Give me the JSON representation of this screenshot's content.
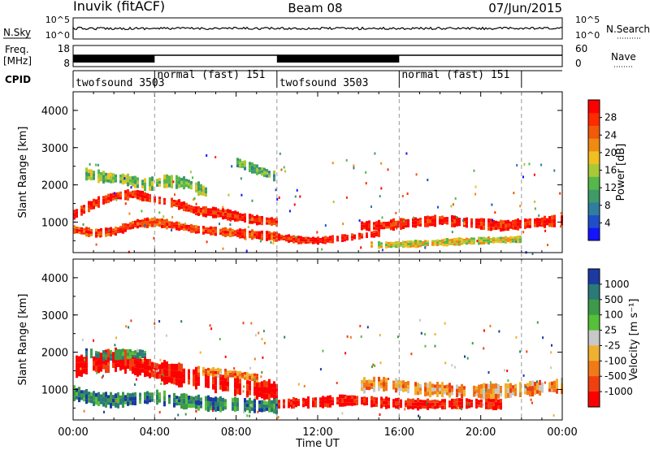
{
  "header": {
    "station": "Inuvik (fitACF)",
    "beam": "Beam 08",
    "date": "07/Jun/2015"
  },
  "top_panels": {
    "nsky": {
      "left_label": "N.Sky",
      "left_ticks": [
        "10^5",
        "10^0"
      ],
      "right_ticks": [
        "10^5",
        "10^0"
      ],
      "right_label": "N.Search"
    },
    "freq": {
      "left_label_1": "Freq.",
      "left_label_2": "[MHz]",
      "left_ticks": [
        "18",
        "8"
      ],
      "right_ticks": [
        "60",
        "0"
      ],
      "right_label": "Nave"
    },
    "cpid": {
      "label": "CPID",
      "segments": [
        {
          "label": "twofsound 3503",
          "start": 0.0,
          "end": 4.0
        },
        {
          "label": "normal (fast) 151",
          "start": 4.0,
          "end": 10.0
        },
        {
          "label": "twofsound 3503",
          "start": 10.0,
          "end": 16.0
        },
        {
          "label": "normal (fast) 151",
          "start": 16.0,
          "end": 22.0
        }
      ]
    }
  },
  "chart_data": [
    {
      "type": "heatmap",
      "panel": "power",
      "ylabel": "Slant Range [km]",
      "yticks": [
        "1000",
        "2000",
        "3000",
        "4000"
      ],
      "ylim": [
        180,
        4500
      ],
      "xlim": [
        0,
        24
      ],
      "colorbar_label": "Power [dB]",
      "colorbar_ticks": [
        "4",
        "8",
        "12",
        "16",
        "20",
        "24",
        "28"
      ],
      "colorbar_colors": [
        "#1414ff",
        "#1f4fc8",
        "#2f7ea0",
        "#3f9a68",
        "#55b84a",
        "#a8c838",
        "#f0c020",
        "#f08a12",
        "#f05a08",
        "#ff2a00",
        "#ff0000"
      ],
      "bands": [
        {
          "points": [
            [
              0,
              1200
            ],
            [
              1,
              1500
            ],
            [
              2,
              1700
            ],
            [
              3,
              1750
            ],
            [
              4,
              1600
            ],
            [
              5,
              1500
            ],
            [
              6,
              1300
            ],
            [
              7,
              1250
            ],
            [
              8,
              1150
            ],
            [
              9,
              1050
            ],
            [
              10,
              1000
            ]
          ],
          "halfwidth": 120,
          "level": 0.9
        },
        {
          "points": [
            [
              0,
              800
            ],
            [
              1,
              700
            ],
            [
              2,
              750
            ],
            [
              3,
              950
            ],
            [
              4,
              1000
            ],
            [
              5,
              900
            ],
            [
              6,
              800
            ],
            [
              7,
              750
            ],
            [
              8,
              700
            ],
            [
              9,
              650
            ],
            [
              10,
              600
            ]
          ],
          "halfwidth": 110,
          "level": 0.85
        },
        {
          "points": [
            [
              9.5,
              650
            ],
            [
              10,
              600
            ],
            [
              11,
              520
            ],
            [
              12,
              500
            ],
            [
              13,
              560
            ],
            [
              14,
              620
            ],
            [
              15,
              700
            ]
          ],
          "halfwidth": 90,
          "level": 0.92
        },
        {
          "points": [
            [
              14,
              900
            ],
            [
              15,
              900
            ],
            [
              16,
              950
            ],
            [
              17,
              1000
            ],
            [
              18,
              1050
            ],
            [
              19,
              1000
            ],
            [
              20,
              950
            ],
            [
              21,
              900
            ],
            [
              22,
              950
            ],
            [
              23,
              1000
            ],
            [
              24,
              1050
            ]
          ],
          "halfwidth": 130,
          "level": 0.95
        },
        {
          "points": [
            [
              14.5,
              400
            ],
            [
              15,
              380
            ],
            [
              16,
              400
            ],
            [
              17,
              420
            ],
            [
              18,
              450
            ],
            [
              19,
              480
            ],
            [
              20,
              500
            ],
            [
              21,
              520
            ],
            [
              22,
              540
            ]
          ],
          "halfwidth": 90,
          "level": 0.55
        },
        {
          "points": [
            [
              0.5,
              2300
            ],
            [
              1.5,
              2200
            ],
            [
              2.5,
              2150
            ],
            [
              3.5,
              2000
            ],
            [
              4.5,
              2100
            ],
            [
              5.5,
              2050
            ],
            [
              6.5,
              1800
            ]
          ],
          "halfwidth": 150,
          "level": 0.45
        },
        {
          "points": [
            [
              8,
              2600
            ],
            [
              9,
              2400
            ],
            [
              10,
              2200
            ]
          ],
          "halfwidth": 120,
          "level": 0.35
        }
      ]
    },
    {
      "type": "heatmap",
      "panel": "velocity",
      "ylabel": "Slant Range [km]",
      "yticks": [
        "1000",
        "2000",
        "3000",
        "4000"
      ],
      "ylim": [
        180,
        4500
      ],
      "xlim": [
        0,
        24
      ],
      "xticks": [
        "00:00",
        "04:00",
        "08:00",
        "12:00",
        "16:00",
        "20:00",
        "00:00"
      ],
      "xlabel": "Time UT",
      "colorbar_label": "Velocity [m s⁻¹]",
      "colorbar_ticks": [
        "1000",
        "500",
        "100",
        "25",
        "-25",
        "-100",
        "-500",
        "-1000"
      ],
      "colorbar_colors": [
        "#1c3aa0",
        "#2a7a78",
        "#3d9a4a",
        "#55c038",
        "#c8c8c8",
        "#f0b030",
        "#f07a18",
        "#f04010",
        "#ff0000"
      ],
      "bands": [
        {
          "points": [
            [
              0,
              1600
            ],
            [
              1,
              1700
            ],
            [
              2,
              1800
            ],
            [
              3,
              1700
            ],
            [
              4,
              1500
            ],
            [
              5,
              1400
            ],
            [
              6,
              1300
            ],
            [
              7,
              1200
            ],
            [
              8,
              1100
            ],
            [
              9,
              1000
            ],
            [
              10,
              950
            ]
          ],
          "halfwidth": 260,
          "level": 0.0
        },
        {
          "points": [
            [
              0,
              900
            ],
            [
              1,
              750
            ],
            [
              2,
              700
            ],
            [
              3,
              750
            ],
            [
              4,
              800
            ],
            [
              5,
              700
            ],
            [
              6,
              650
            ],
            [
              7,
              600
            ],
            [
              8,
              600
            ],
            [
              9,
              550
            ],
            [
              10,
              550
            ]
          ],
          "halfwidth": 170,
          "level": 0.78
        },
        {
          "points": [
            [
              10,
              600
            ],
            [
              11,
              650
            ],
            [
              12,
              650
            ],
            [
              13,
              700
            ],
            [
              14,
              700
            ],
            [
              15,
              650
            ],
            [
              16,
              620
            ],
            [
              17,
              600
            ],
            [
              18,
              600
            ],
            [
              19,
              620
            ],
            [
              20,
              620
            ],
            [
              21,
              600
            ]
          ],
          "halfwidth": 130,
          "level": 0.05
        },
        {
          "points": [
            [
              14,
              1100
            ],
            [
              15,
              1150
            ],
            [
              16,
              1100
            ],
            [
              17,
              1000
            ],
            [
              18,
              1000
            ],
            [
              19,
              950
            ],
            [
              20,
              950
            ],
            [
              21,
              950
            ],
            [
              22,
              1000
            ],
            [
              23,
              1050
            ],
            [
              24,
              1100
            ]
          ],
          "halfwidth": 170,
          "level": 0.35
        },
        {
          "points": [
            [
              0.5,
              2000
            ],
            [
              1.5,
              1900
            ],
            [
              2.5,
              1950
            ],
            [
              3.5,
              1950
            ]
          ],
          "halfwidth": 120,
          "level": 0.72
        },
        {
          "points": [
            [
              6,
              1500
            ],
            [
              7,
              1450
            ],
            [
              8,
              1400
            ],
            [
              9,
              1300
            ]
          ],
          "halfwidth": 110,
          "level": 0.28
        }
      ]
    }
  ]
}
